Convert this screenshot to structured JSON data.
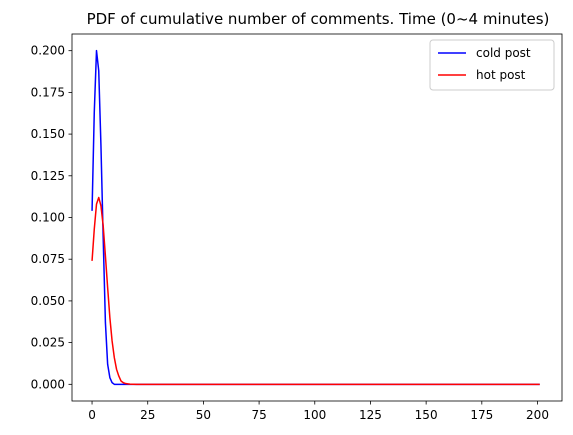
{
  "chart_data": {
    "type": "line",
    "title": "PDF of cumulative number of comments. Time (0~4 minutes)",
    "xlabel": "",
    "ylabel": "",
    "xlim": [
      -9,
      211
    ],
    "ylim": [
      -0.01,
      0.21
    ],
    "xticks": [
      0,
      25,
      50,
      75,
      100,
      125,
      150,
      175,
      200
    ],
    "xtick_labels": [
      "0",
      "25",
      "50",
      "75",
      "100",
      "125",
      "150",
      "175",
      "200"
    ],
    "yticks": [
      0.0,
      0.025,
      0.05,
      0.075,
      0.1,
      0.125,
      0.15,
      0.175,
      0.2
    ],
    "ytick_labels": [
      "0.000",
      "0.025",
      "0.050",
      "0.075",
      "0.100",
      "0.125",
      "0.150",
      "0.175",
      "0.200"
    ],
    "grid": false,
    "legend_position": "top-right",
    "series": [
      {
        "name": "cold post",
        "color": "#0000ff",
        "x": [
          0,
          1,
          2,
          3,
          4,
          5,
          6,
          7,
          8,
          9,
          10,
          11,
          12,
          13,
          14,
          15,
          20,
          30,
          50,
          100,
          150,
          201
        ],
        "y": [
          0.104,
          0.163,
          0.2,
          0.188,
          0.143,
          0.088,
          0.037,
          0.012,
          0.004,
          0.001,
          0.0,
          0.0,
          0.0,
          0.0,
          0.0,
          0.0,
          0.0,
          0.0,
          0.0,
          0.0,
          0.0,
          0.0
        ]
      },
      {
        "name": "hot post",
        "color": "#ff0000",
        "x": [
          0,
          1,
          2,
          3,
          4,
          5,
          6,
          7,
          8,
          9,
          10,
          11,
          12,
          13,
          14,
          15,
          17,
          20,
          30,
          50,
          100,
          150,
          201
        ],
        "y": [
          0.074,
          0.093,
          0.108,
          0.112,
          0.107,
          0.095,
          0.077,
          0.058,
          0.04,
          0.026,
          0.016,
          0.009,
          0.005,
          0.002,
          0.001,
          0.0005,
          0.0001,
          0.0,
          0.0,
          0.0,
          0.0,
          0.0,
          0.0
        ]
      }
    ]
  }
}
